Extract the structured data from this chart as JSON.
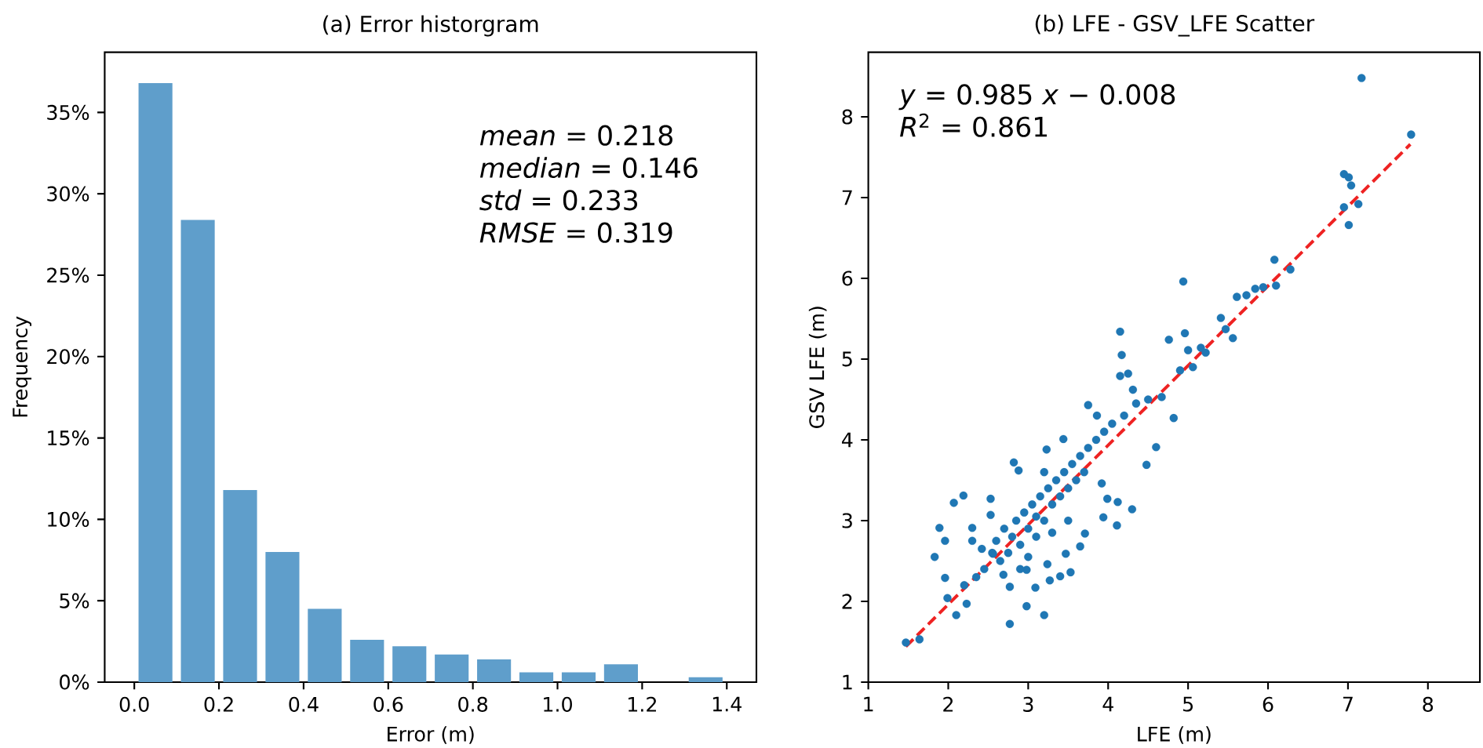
{
  "chart_data": [
    {
      "type": "histogram",
      "title": "(a) Error historgram",
      "xlabel": "Error (m)",
      "ylabel": "Frequency",
      "color": "#5f9ecb",
      "bins": [
        0,
        0.1,
        0.2,
        0.3,
        0.4,
        0.5,
        0.6,
        0.7,
        0.8,
        0.9,
        1.0,
        1.1,
        1.2,
        1.3,
        1.4
      ],
      "values": [
        36.8,
        28.4,
        11.8,
        8.0,
        4.5,
        2.6,
        2.2,
        1.7,
        1.4,
        0.6,
        0.6,
        1.1,
        0,
        0.3
      ],
      "xlim": [
        -0.07,
        1.47
      ],
      "xticks": [
        {
          "value": 0,
          "label": "0.0"
        },
        {
          "value": 0.2,
          "label": "0.2"
        },
        {
          "value": 0.4,
          "label": "0.4"
        },
        {
          "value": 0.6,
          "label": "0.6"
        },
        {
          "value": 0.8,
          "label": "0.8"
        },
        {
          "value": 1.0,
          "label": "1.0"
        },
        {
          "value": 1.2,
          "label": "1.2"
        },
        {
          "value": 1.4,
          "label": "1.4"
        }
      ],
      "ylim": [
        0,
        38.7
      ],
      "yticks": [
        {
          "value": 0,
          "label": "0%"
        },
        {
          "value": 5,
          "label": "5%"
        },
        {
          "value": 10,
          "label": "10%"
        },
        {
          "value": 15,
          "label": "15%"
        },
        {
          "value": 20,
          "label": "20%"
        },
        {
          "value": 25,
          "label": "25%"
        },
        {
          "value": 30,
          "label": "30%"
        },
        {
          "value": 35,
          "label": "35%"
        }
      ],
      "annotations": [
        "*mean* = 0.218",
        "*median* = 0.146",
        "*std* = 0.233",
        "*RMSE* = 0.319"
      ]
    },
    {
      "type": "scatter",
      "title": "(b) LFE - GSV_LFE Scatter",
      "xlabel": "LFE (m)",
      "ylabel": "GSV LFE (m)",
      "xlim": [
        1,
        8.65
      ],
      "xticks": [
        1,
        2,
        3,
        4,
        5,
        6,
        7,
        8
      ],
      "ylim": [
        1,
        8.8
      ],
      "yticks": [
        1,
        2,
        3,
        4,
        5,
        6,
        7,
        8
      ],
      "annotations": [
        "*y* = 0.985 *x* − 0.008",
        "*R*$^{2}$ = 0.861"
      ],
      "series": [
        {
          "type": "scatter",
          "color": "#1f77b4",
          "marker": "circle",
          "x": [
            1.47,
            1.64,
            1.83,
            1.89,
            1.96,
            2.07,
            2.19,
            2.1,
            1.96,
            1.99,
            2.23,
            2.3,
            2.3,
            2.42,
            2.53,
            2.53,
            2.56,
            2.69,
            2.77,
            2.77,
            2.82,
            2.88,
            2.98,
            2.98,
            3.09,
            3.2,
            3.23,
            3.24,
            3.27,
            3.4,
            3.44,
            3.47,
            3.53,
            3.65,
            3.71,
            3.75,
            3.86,
            3.92,
            3.94,
            3.99,
            4.11,
            4.12,
            4.15,
            4.17,
            4.15,
            4.25,
            4.3,
            4.31,
            4.48,
            4.6,
            4.67,
            4.76,
            4.82,
            4.9,
            4.94,
            4.96,
            5.0,
            5.06,
            5.16,
            5.22,
            5.41,
            5.47,
            5.56,
            5.61,
            5.73,
            5.84,
            5.94,
            6.08,
            6.1,
            6.28,
            6.95,
            7.01,
            6.95,
            7.01,
            7.04,
            7.13,
            7.17,
            7.79,
            2.45,
            2.55,
            2.6,
            2.65,
            2.7,
            2.75,
            2.8,
            2.85,
            2.9,
            2.95,
            3.0,
            3.05,
            3.1,
            3.1,
            3.15,
            3.2,
            3.25,
            3.3,
            3.35,
            3.4,
            3.45,
            3.5,
            3.55,
            3.6,
            3.65,
            3.7,
            3.75,
            3.85,
            3.95,
            4.05,
            4.2,
            4.35,
            4.5,
            2.35,
            2.2,
            2.9,
            3.0,
            3.3,
            3.5,
            3.2
          ],
          "values": [
            1.49,
            1.53,
            2.55,
            2.91,
            2.75,
            3.22,
            3.31,
            1.83,
            2.29,
            2.04,
            1.97,
            2.91,
            2.75,
            2.65,
            3.27,
            3.07,
            2.59,
            2.33,
            2.18,
            1.72,
            3.72,
            3.62,
            1.94,
            2.39,
            2.17,
            1.83,
            3.88,
            2.46,
            2.26,
            2.31,
            4.01,
            2.59,
            2.36,
            2.68,
            2.84,
            4.43,
            4.3,
            3.46,
            3.04,
            3.27,
            2.94,
            3.23,
            5.34,
            5.05,
            4.79,
            4.82,
            3.14,
            4.62,
            3.69,
            3.91,
            4.53,
            5.24,
            4.27,
            4.86,
            5.96,
            5.32,
            5.11,
            4.9,
            5.14,
            5.08,
            5.51,
            5.37,
            5.26,
            5.77,
            5.79,
            5.87,
            5.89,
            6.23,
            5.91,
            6.11,
            7.29,
            7.25,
            6.88,
            6.66,
            7.15,
            6.92,
            8.48,
            7.78,
            2.4,
            2.6,
            2.75,
            2.5,
            2.9,
            2.6,
            2.8,
            3.0,
            2.7,
            3.1,
            2.9,
            3.2,
            2.8,
            3.05,
            3.3,
            3.0,
            3.4,
            3.2,
            3.5,
            3.3,
            3.6,
            3.4,
            3.7,
            3.5,
            3.8,
            3.6,
            3.9,
            4.0,
            4.1,
            4.2,
            4.3,
            4.45,
            4.5,
            2.3,
            2.2,
            2.4,
            2.55,
            2.85,
            3.0,
            3.6
          ]
        },
        {
          "type": "line",
          "color": "#ee2222",
          "line_style": "dashed",
          "x": [
            1.47,
            7.78
          ],
          "values": [
            1.44,
            7.66
          ]
        }
      ]
    }
  ]
}
